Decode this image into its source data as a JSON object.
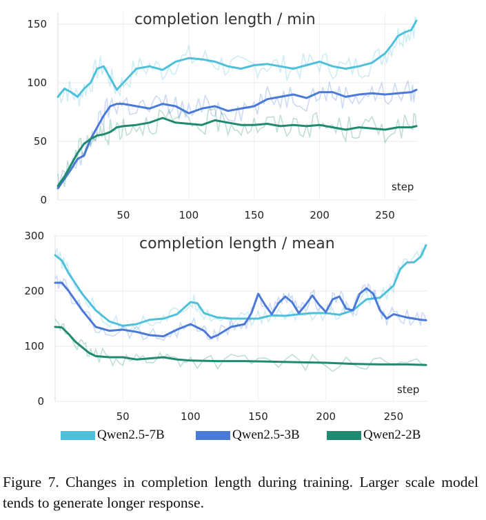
{
  "chart_data": [
    {
      "type": "line",
      "title": "completion length / min",
      "xlabel": "step",
      "ylabel": "",
      "xlim": [
        0,
        275
      ],
      "ylim": [
        0,
        160
      ],
      "xticks": [
        50,
        100,
        150,
        200,
        250
      ],
      "yticks": [
        0,
        50,
        100,
        150
      ],
      "grid": true,
      "series": [
        {
          "name": "Qwen2.5-7B",
          "color": "#4fc0d9",
          "x": [
            0,
            5,
            10,
            15,
            20,
            25,
            30,
            35,
            40,
            45,
            50,
            60,
            70,
            80,
            90,
            100,
            110,
            120,
            130,
            140,
            150,
            160,
            170,
            180,
            190,
            200,
            210,
            220,
            230,
            240,
            250,
            255,
            260,
            265,
            270,
            274
          ],
          "y": [
            88,
            95,
            92,
            88,
            95,
            100,
            112,
            114,
            104,
            94,
            100,
            112,
            114,
            111,
            118,
            121,
            120,
            118,
            114,
            112,
            115,
            116,
            114,
            112,
            115,
            118,
            114,
            112,
            114,
            117,
            125,
            132,
            140,
            143,
            145,
            153
          ]
        },
        {
          "name": "Qwen2.5-3B",
          "color": "#4a79d8",
          "x": [
            0,
            5,
            10,
            15,
            20,
            25,
            30,
            35,
            40,
            45,
            50,
            60,
            70,
            80,
            90,
            100,
            110,
            120,
            130,
            140,
            150,
            160,
            170,
            180,
            190,
            200,
            210,
            220,
            230,
            240,
            250,
            260,
            270,
            274
          ],
          "y": [
            10,
            18,
            26,
            35,
            38,
            52,
            62,
            72,
            80,
            82,
            82,
            80,
            78,
            82,
            80,
            74,
            78,
            80,
            76,
            78,
            80,
            86,
            88,
            90,
            87,
            92,
            92,
            88,
            90,
            91,
            90,
            91,
            92,
            94
          ]
        },
        {
          "name": "Qwen2-2B",
          "color": "#1f8a70",
          "x": [
            0,
            5,
            10,
            15,
            20,
            25,
            30,
            35,
            40,
            45,
            50,
            60,
            70,
            80,
            90,
            100,
            110,
            120,
            130,
            140,
            150,
            160,
            170,
            180,
            190,
            200,
            210,
            220,
            230,
            240,
            250,
            260,
            270,
            274
          ],
          "y": [
            12,
            20,
            30,
            40,
            48,
            52,
            55,
            56,
            58,
            62,
            63,
            64,
            66,
            70,
            66,
            65,
            64,
            68,
            66,
            64,
            64,
            65,
            63,
            64,
            63,
            64,
            62,
            60,
            62,
            61,
            60,
            62,
            62,
            63
          ]
        }
      ]
    },
    {
      "type": "line",
      "title": "completion length / mean",
      "xlabel": "step",
      "ylabel": "",
      "xlim": [
        0,
        275
      ],
      "ylim": [
        0,
        300
      ],
      "xticks": [
        50,
        100,
        150,
        200,
        250
      ],
      "yticks": [
        0,
        100,
        200,
        300
      ],
      "grid": true,
      "series": [
        {
          "name": "Qwen2.5-7B",
          "color": "#4fc0d9",
          "x": [
            0,
            5,
            10,
            20,
            30,
            40,
            50,
            60,
            70,
            80,
            90,
            100,
            105,
            110,
            120,
            130,
            140,
            150,
            160,
            170,
            180,
            190,
            200,
            210,
            220,
            230,
            240,
            250,
            255,
            260,
            265,
            270,
            274
          ],
          "y": [
            265,
            255,
            232,
            195,
            165,
            145,
            137,
            140,
            148,
            150,
            158,
            180,
            178,
            160,
            152,
            150,
            150,
            150,
            156,
            155,
            158,
            160,
            160,
            157,
            165,
            185,
            188,
            210,
            240,
            252,
            252,
            262,
            283
          ]
        },
        {
          "name": "Qwen2.5-3B",
          "color": "#4a79d8",
          "x": [
            0,
            5,
            10,
            20,
            30,
            40,
            50,
            60,
            70,
            80,
            90,
            100,
            110,
            115,
            120,
            130,
            140,
            145,
            150,
            155,
            160,
            165,
            170,
            175,
            180,
            185,
            190,
            195,
            200,
            205,
            210,
            215,
            220,
            225,
            230,
            235,
            240,
            245,
            250,
            260,
            270,
            274
          ],
          "y": [
            215,
            215,
            200,
            165,
            135,
            128,
            130,
            126,
            120,
            118,
            130,
            140,
            128,
            115,
            120,
            135,
            140,
            160,
            195,
            175,
            158,
            178,
            190,
            180,
            160,
            175,
            192,
            175,
            162,
            185,
            190,
            168,
            165,
            195,
            205,
            195,
            165,
            150,
            158,
            152,
            148,
            147
          ]
        },
        {
          "name": "Qwen2-2B",
          "color": "#1f8a70",
          "x": [
            0,
            5,
            10,
            15,
            20,
            25,
            30,
            40,
            50,
            60,
            70,
            80,
            90,
            100,
            120,
            140,
            160,
            180,
            200,
            220,
            240,
            260,
            274
          ],
          "y": [
            135,
            134,
            122,
            108,
            98,
            88,
            82,
            80,
            80,
            76,
            78,
            80,
            76,
            74,
            73,
            73,
            72,
            71,
            70,
            68,
            67,
            67,
            66
          ]
        }
      ]
    }
  ],
  "legend": [
    {
      "name": "Qwen2.5-7B",
      "color": "#4fc0d9"
    },
    {
      "name": "Qwen2.5-3B",
      "color": "#4a79d8"
    },
    {
      "name": "Qwen2-2B",
      "color": "#1f8a70"
    }
  ],
  "caption": "Figure 7.  Changes in completion length during training.  Larger scale model tends to generate longer response."
}
